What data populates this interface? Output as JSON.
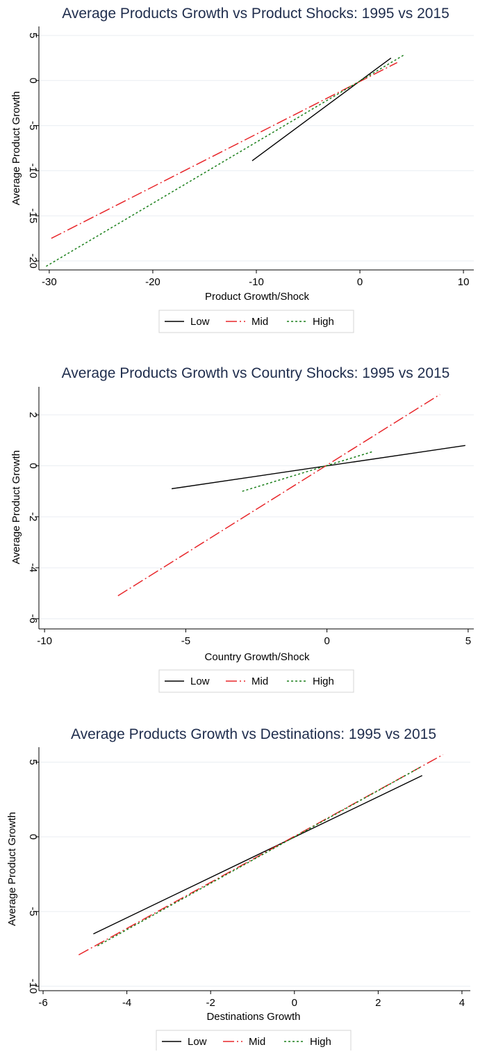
{
  "chart_data": [
    {
      "type": "line",
      "title": "Average Products Growth  vs Product Shocks: 1995 vs 2015",
      "xlabel": "Product Growth/Shock",
      "ylabel": "Average Product Growth",
      "xlim": [
        -31,
        11
      ],
      "ylim": [
        -21,
        6
      ],
      "xticks": [
        -30,
        -20,
        -10,
        0,
        10
      ],
      "xtick_labels": [
        "-30",
        "-20",
        "-10",
        "0",
        "10"
      ],
      "yticks": [
        -20,
        -15,
        -10,
        -5,
        0,
        5
      ],
      "ytick_labels": [
        "-20",
        "-15",
        "-10",
        "-5",
        "0",
        "5"
      ],
      "grid": true,
      "legend": "bottom",
      "series": [
        {
          "name": "Low",
          "color": "#000000",
          "dash": "solid",
          "x": [
            -10.4,
            3.0
          ],
          "y": [
            -8.9,
            2.5
          ]
        },
        {
          "name": "Mid",
          "color": "#e8262a",
          "dash": "longdash",
          "x": [
            -29.8,
            3.6
          ],
          "y": [
            -17.5,
            2.0
          ]
        },
        {
          "name": "High",
          "color": "#1a7f1a",
          "dash": "dotted",
          "x": [
            -30.3,
            4.2
          ],
          "y": [
            -20.6,
            2.8
          ]
        }
      ]
    },
    {
      "type": "line",
      "title": "Average Products Growth  vs Country Shocks: 1995 vs 2015",
      "xlabel": "Country Growth/Shock",
      "ylabel": "Average Product Growth",
      "xlim": [
        -10.2,
        5.2
      ],
      "ylim": [
        -6.4,
        3.1
      ],
      "xticks": [
        -10,
        -5,
        0,
        5
      ],
      "xtick_labels": [
        "-10",
        "-5",
        "0",
        "5"
      ],
      "yticks": [
        -6,
        -4,
        -2,
        0,
        2
      ],
      "ytick_labels": [
        "-6",
        "-4",
        "-2",
        "0",
        "2"
      ],
      "grid": true,
      "legend": "bottom",
      "series": [
        {
          "name": "Low",
          "color": "#000000",
          "dash": "solid",
          "x": [
            -5.5,
            4.9
          ],
          "y": [
            -0.9,
            0.8
          ]
        },
        {
          "name": "Mid",
          "color": "#e8262a",
          "dash": "longdash",
          "x": [
            -7.4,
            4.0
          ],
          "y": [
            -5.1,
            2.8
          ]
        },
        {
          "name": "High",
          "color": "#1a7f1a",
          "dash": "dotted",
          "x": [
            -3.0,
            1.6
          ],
          "y": [
            -1.0,
            0.55
          ]
        }
      ]
    },
    {
      "type": "line",
      "title": "Average Products Growth vs Destinations: 1995 vs 2015",
      "xlabel": "Destinations Growth",
      "ylabel": "Average Product Growth",
      "xlim": [
        -6.1,
        4.2
      ],
      "ylim": [
        -10.3,
        6.0
      ],
      "xticks": [
        -6,
        -4,
        -2,
        0,
        2,
        4
      ],
      "xtick_labels": [
        "-6",
        "-4",
        "-2",
        "0",
        "2",
        "4"
      ],
      "yticks": [
        -10,
        -5,
        0,
        5
      ],
      "ytick_labels": [
        "-10",
        "-5",
        "0",
        "5"
      ],
      "grid": true,
      "legend": "bottom",
      "series": [
        {
          "name": "Low",
          "color": "#000000",
          "dash": "solid",
          "x": [
            -4.8,
            3.05
          ],
          "y": [
            -6.5,
            4.1
          ]
        },
        {
          "name": "Mid",
          "color": "#e8262a",
          "dash": "longdash",
          "x": [
            -5.15,
            3.55
          ],
          "y": [
            -7.9,
            5.5
          ]
        },
        {
          "name": "High",
          "color": "#1a7f1a",
          "dash": "dotted",
          "x": [
            -4.7,
            3.0
          ],
          "y": [
            -7.3,
            4.65
          ]
        }
      ]
    }
  ]
}
